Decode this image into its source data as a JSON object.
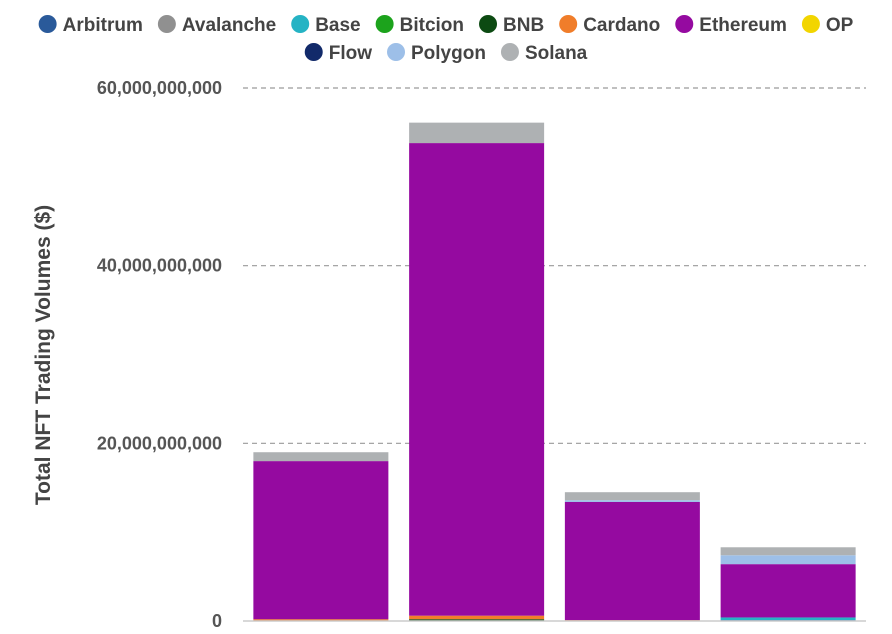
{
  "chart_data": {
    "type": "bar",
    "stacked": true,
    "ylabel": "Total NFT Trading Volumes ($)",
    "ylim": [
      0,
      60000000000
    ],
    "yticks": [
      0,
      20000000000,
      40000000000,
      60000000000
    ],
    "ytick_labels": [
      "0",
      "20,000,000,000",
      "40,000,000,000",
      "60,000,000,000"
    ],
    "grid": true,
    "legend_position": "top",
    "categories": [
      "",
      "",
      "",
      ""
    ],
    "series": [
      {
        "name": "Arbitrum",
        "color": "#2a5a9a",
        "values": [
          0,
          0,
          0,
          100000000
        ]
      },
      {
        "name": "Avalanche",
        "color": "#909090",
        "values": [
          0,
          0,
          0,
          0
        ]
      },
      {
        "name": "Base",
        "color": "#25b3c4",
        "values": [
          0,
          0,
          0,
          300000000
        ]
      },
      {
        "name": "Bitcion",
        "color": "#1ca31c",
        "values": [
          0,
          0,
          0,
          0
        ]
      },
      {
        "name": "BNB",
        "color": "#0c4a12",
        "values": [
          0,
          200000000,
          0,
          0
        ]
      },
      {
        "name": "Cardano",
        "color": "#f07d2a",
        "values": [
          200000000,
          400000000,
          100000000,
          0
        ]
      },
      {
        "name": "Ethereum",
        "color": "#950aa0",
        "values": [
          17800000000,
          53200000000,
          13300000000,
          6000000000
        ]
      },
      {
        "name": "OP",
        "color": "#f2d500",
        "values": [
          0,
          0,
          0,
          0
        ]
      },
      {
        "name": "Flow",
        "color": "#122a6a",
        "values": [
          0,
          0,
          0,
          0
        ]
      },
      {
        "name": "Polygon",
        "color": "#9dbfe8",
        "values": [
          0,
          0,
          200000000,
          1000000000
        ]
      },
      {
        "name": "Solana",
        "color": "#aeb1b3",
        "values": [
          1000000000,
          2300000000,
          900000000,
          900000000
        ]
      }
    ]
  }
}
